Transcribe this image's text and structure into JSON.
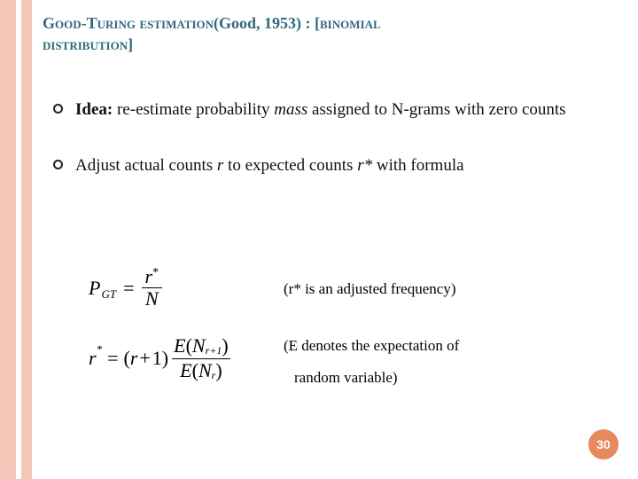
{
  "title": {
    "line1_caps": "Good-Turing estimation",
    "line1_rest": "(Good, 1953) : [",
    "line1_binom": "binomial",
    "line2_caps": "distribution",
    "line2_rest": "]"
  },
  "bullets": {
    "b1_label": "Idea:",
    "b1_rest": " re-estimate probability ",
    "b1_ital": "mass",
    "b1_rest2": " assigned to N-grams with zero counts",
    "b2_pre": "Adjust actual counts ",
    "b2_r": "r",
    "b2_mid": " to expected counts ",
    "b2_rstar": "r*",
    "b2_post": " with formula"
  },
  "formula1": {
    "P": "P",
    "sub": "GT",
    "eq": "=",
    "num_r": "r",
    "num_star": "*",
    "den": "N"
  },
  "formula2": {
    "r": "r",
    "star": "*",
    "eq": "=",
    "lp": "(",
    "rp1": "r",
    "plus": "+",
    "one": "1",
    "rp": ")",
    "E": "E",
    "N": "N",
    "sub_rp1": "r+1",
    "sub_r": "r"
  },
  "annot": {
    "a1": "(r* is an adjusted frequency)",
    "a2": "(E denotes  the expectation of",
    "a3": " random variable)"
  },
  "page": "30",
  "colors": {
    "title": "#316880",
    "stripe": "#f3c7b8",
    "badge": "#e68a5e"
  }
}
